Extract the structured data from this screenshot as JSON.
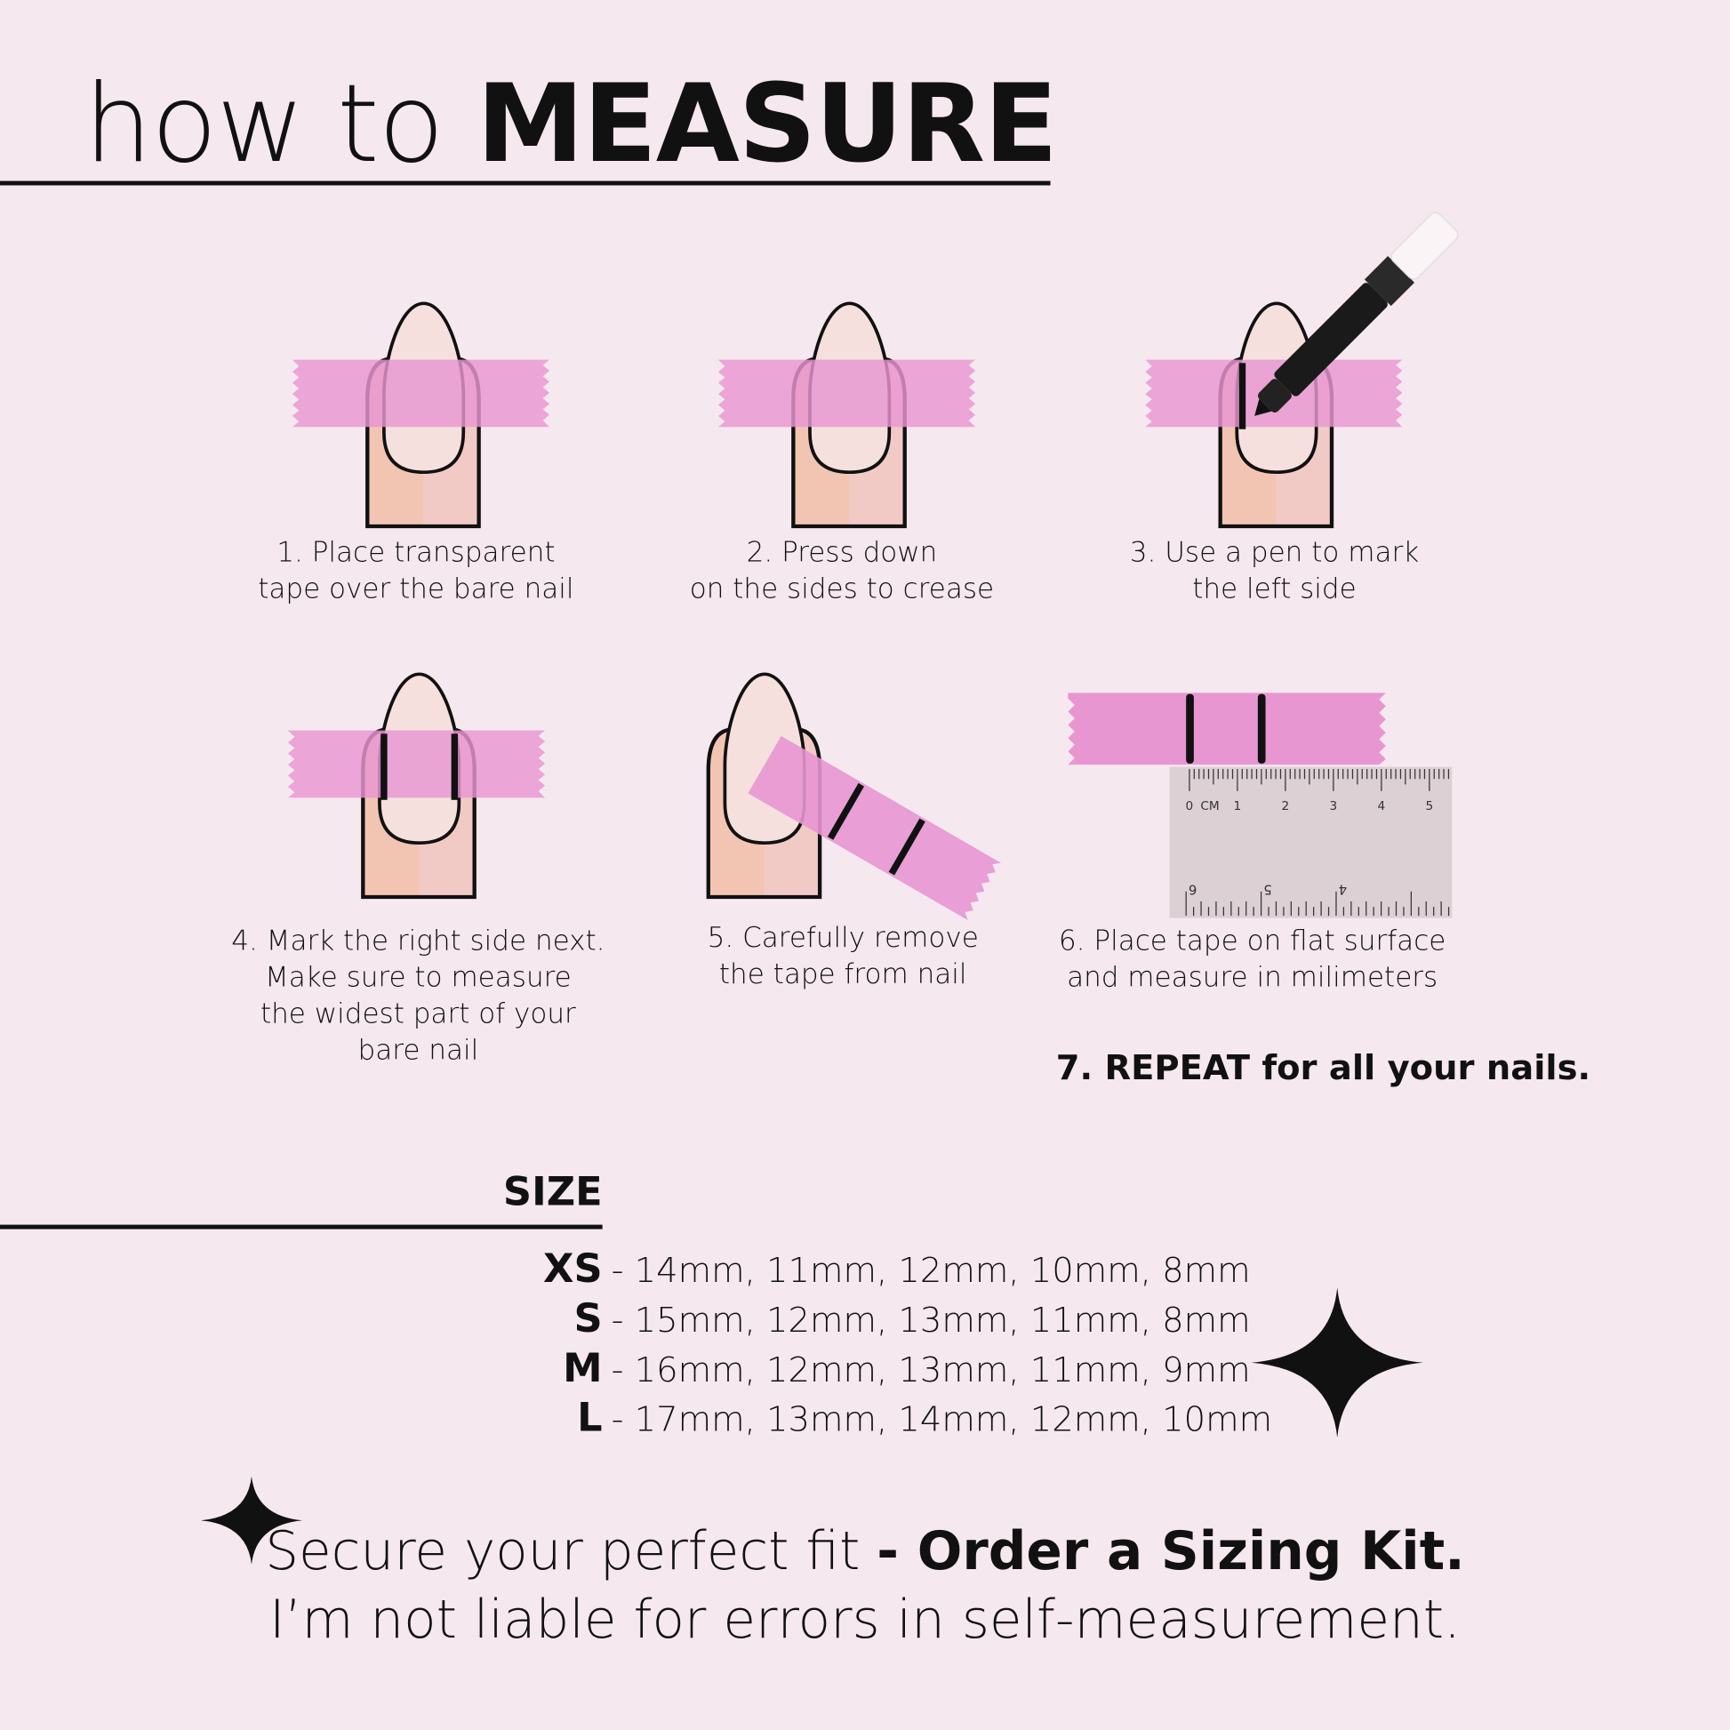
{
  "header": {
    "title_light": "how to",
    "title_bold": "MEASURE"
  },
  "steps": [
    {
      "line1": "1. Place transparent",
      "line2": "tape over the bare nail"
    },
    {
      "line1": "2. Press down",
      "line2": "on the sides to crease"
    },
    {
      "line1": "3. Use a pen to mark",
      "line2": "the left side"
    },
    {
      "line1": "4. Mark the right side next.",
      "line2": "Make sure to measure",
      "line3": "the widest part of your",
      "line4": "bare nail"
    },
    {
      "line1": "5. Carefully remove",
      "line2": "the tape from nail"
    },
    {
      "line1": "6. Place tape on flat surface",
      "line2": "and measure in milimeters"
    }
  ],
  "repeat": "7. REPEAT for all your nails.",
  "ruler": {
    "unit": "CM",
    "top_labels": [
      "0",
      "1",
      "2",
      "3",
      "4",
      "5"
    ],
    "bottom_labels": [
      "6",
      "5",
      "4"
    ]
  },
  "size": {
    "heading": "SIZE",
    "rows": [
      {
        "label": "XS",
        "values": "- 14mm, 11mm, 12mm, 10mm, 8mm"
      },
      {
        "label": "S",
        "values": "- 15mm, 12mm, 13mm, 11mm, 8mm"
      },
      {
        "label": "M",
        "values": "- 16mm, 12mm, 13mm, 11mm, 9mm"
      },
      {
        "label": "L",
        "values": "- 17mm, 13mm, 14mm, 12mm, 10mm"
      }
    ]
  },
  "footer": {
    "line1_light": "Secure your perfect fit ",
    "line1_bold": "- Order a Sizing Kit.",
    "line2": "I’m not liable for errors in self-measurement."
  },
  "colors": {
    "background": "#f6e8ef",
    "tape": "#e896d2",
    "nail": "#f5e0de",
    "skin": "#f2c4b2",
    "ink": "#111111"
  }
}
